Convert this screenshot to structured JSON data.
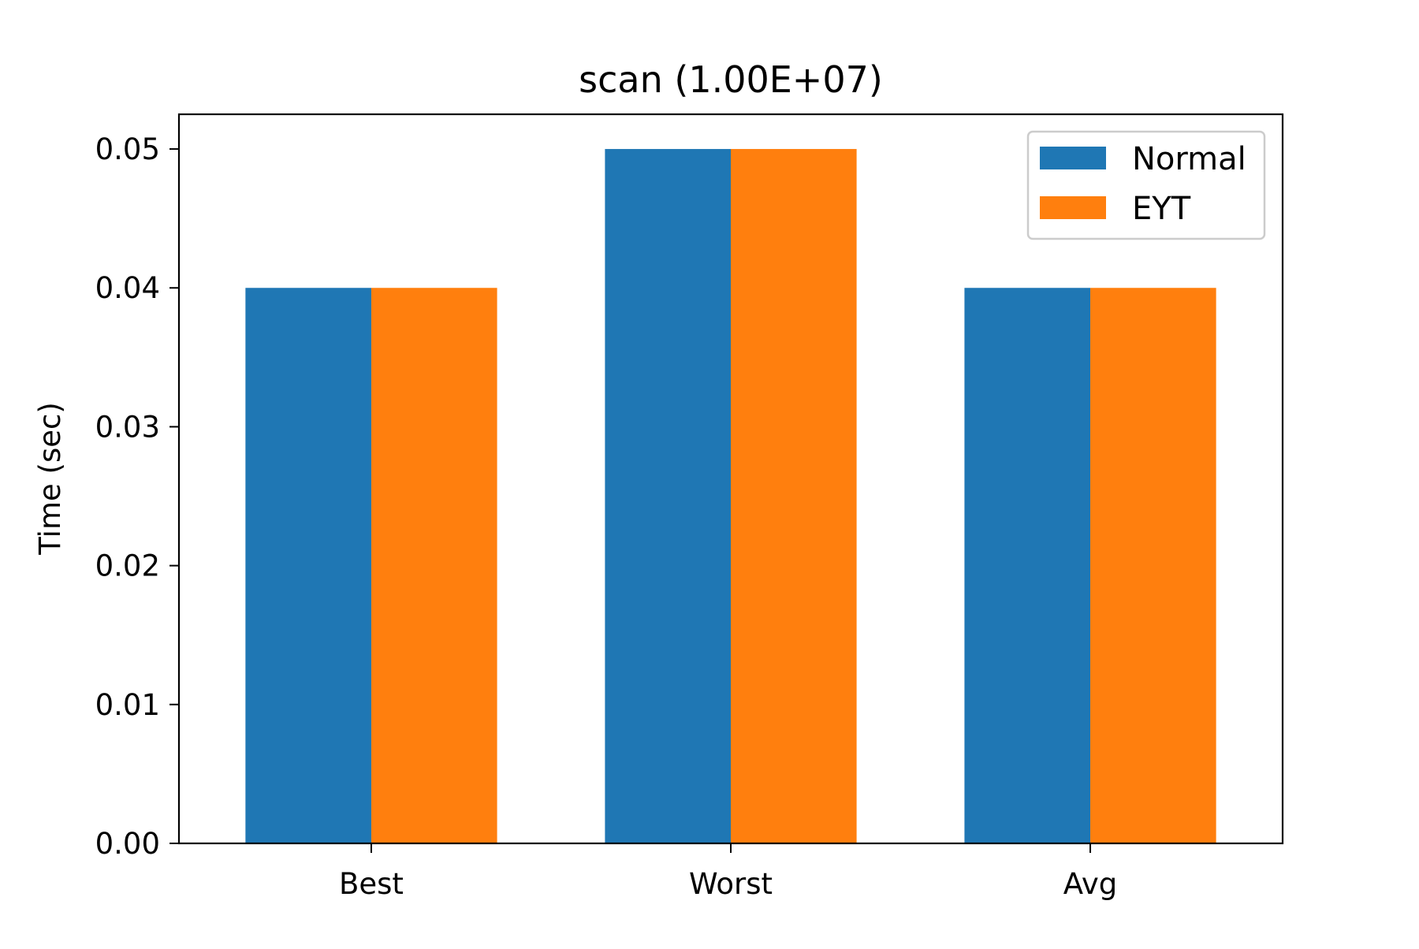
{
  "chart_data": {
    "type": "bar",
    "title": "scan (1.00E+07)",
    "xlabel": "",
    "ylabel": "Time (sec)",
    "categories": [
      "Best",
      "Worst",
      "Avg"
    ],
    "series": [
      {
        "name": "Normal",
        "values": [
          0.04,
          0.05,
          0.04
        ],
        "color": "#1f77b4"
      },
      {
        "name": "EYT",
        "values": [
          0.04,
          0.05,
          0.04
        ],
        "color": "#ff7f0e"
      }
    ],
    "ylim": [
      0,
      0.0525
    ],
    "yticks": [
      "0.00",
      "0.01",
      "0.02",
      "0.03",
      "0.04",
      "0.05"
    ],
    "legend_position": "top-right",
    "grid": false
  }
}
